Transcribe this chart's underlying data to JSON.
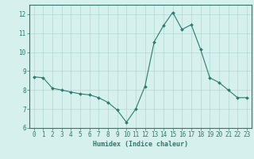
{
  "x": [
    0,
    1,
    2,
    3,
    4,
    5,
    6,
    7,
    8,
    9,
    10,
    11,
    12,
    13,
    14,
    15,
    16,
    17,
    18,
    19,
    20,
    21,
    22,
    23
  ],
  "y": [
    8.7,
    8.65,
    8.1,
    8.0,
    7.9,
    7.8,
    7.75,
    7.6,
    7.35,
    6.95,
    6.3,
    7.0,
    8.2,
    10.55,
    11.4,
    12.1,
    11.2,
    11.45,
    10.15,
    8.65,
    8.4,
    8.0,
    7.6,
    7.6
  ],
  "line_color": "#2d7a6e",
  "marker": "D",
  "marker_size": 2.0,
  "bg_color": "#d6f0ee",
  "grid_color": "#b0d8d4",
  "axis_color": "#2d7a6e",
  "tick_color": "#2d7a6e",
  "xlabel": "Humidex (Indice chaleur)",
  "xlim": [
    -0.5,
    23.5
  ],
  "ylim": [
    6,
    12.5
  ],
  "yticks": [
    6,
    7,
    8,
    9,
    10,
    11,
    12
  ],
  "xticks": [
    0,
    1,
    2,
    3,
    4,
    5,
    6,
    7,
    8,
    9,
    10,
    11,
    12,
    13,
    14,
    15,
    16,
    17,
    18,
    19,
    20,
    21,
    22,
    23
  ],
  "label_fontsize": 6.0,
  "tick_fontsize": 5.5
}
